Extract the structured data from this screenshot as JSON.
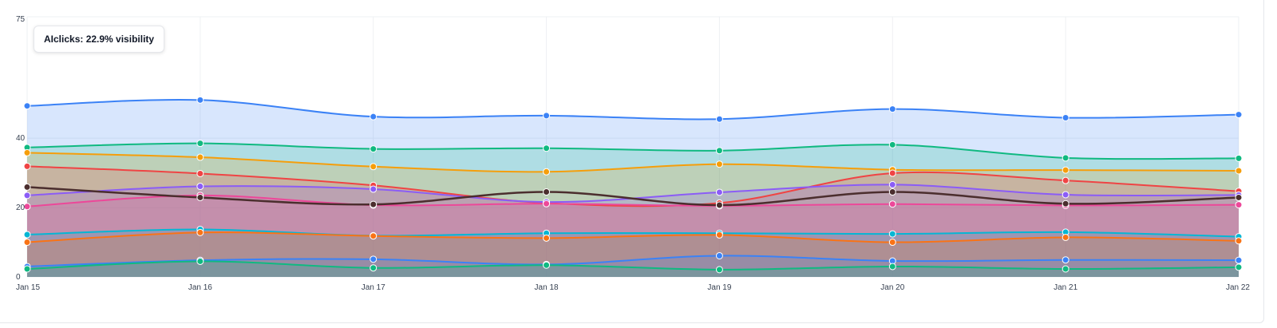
{
  "chart_data": {
    "type": "area",
    "x": [
      "Jan 15",
      "Jan 16",
      "Jan 17",
      "Jan 18",
      "Jan 19",
      "Jan 20",
      "Jan 21",
      "Jan 22"
    ],
    "ylim": [
      0,
      75
    ],
    "yticks": [
      0,
      20,
      40,
      75
    ],
    "grid": true,
    "legend": "none",
    "tooltip": "AIclicks: 22.9% visibility",
    "series": [
      {
        "color": "#3b82f6",
        "fill": true,
        "values": [
          49.3,
          51.0,
          46.2,
          46.5,
          45.5,
          48.4,
          45.9,
          46.8
        ]
      },
      {
        "color": "#10b981",
        "fill": true,
        "values": [
          37.3,
          38.5,
          36.9,
          37.1,
          36.4,
          38.1,
          34.3,
          34.2
        ]
      },
      {
        "color": "#f59e0b",
        "fill": true,
        "values": [
          35.8,
          34.5,
          31.8,
          30.3,
          32.5,
          30.9,
          30.8,
          30.6
        ]
      },
      {
        "color": "#ef4444",
        "fill": true,
        "values": [
          31.9,
          29.8,
          26.4,
          21.3,
          21.3,
          29.9,
          27.8,
          24.7
        ]
      },
      {
        "color": "#8b5cf6",
        "fill": true,
        "values": [
          23.5,
          26.1,
          25.3,
          21.6,
          24.4,
          26.6,
          23.7,
          23.6
        ]
      },
      {
        "color": "#ec4899",
        "fill": true,
        "values": [
          20.3,
          23.5,
          20.7,
          21.1,
          20.5,
          21.0,
          20.6,
          20.8
        ]
      },
      {
        "color": "#06b6d4",
        "fill": true,
        "values": [
          12.2,
          13.7,
          11.9,
          12.6,
          12.6,
          12.4,
          12.9,
          11.6
        ]
      },
      {
        "color": "#f97316",
        "fill": true,
        "values": [
          10.0,
          12.8,
          11.8,
          11.2,
          12.1,
          10.0,
          11.4,
          10.4
        ]
      },
      {
        "color": "#3b82f6",
        "fill": true,
        "values": [
          3.0,
          4.8,
          5.1,
          3.6,
          6.1,
          4.6,
          4.9,
          4.8
        ]
      },
      {
        "color": "#10b981",
        "fill": true,
        "values": [
          2.3,
          4.5,
          2.6,
          3.4,
          2.1,
          3.0,
          2.3,
          2.8
        ]
      },
      {
        "color": "#4b2e2e",
        "fill": false,
        "values": [
          25.9,
          22.9,
          20.9,
          24.5,
          20.7,
          24.5,
          21.1,
          22.9
        ]
      }
    ]
  }
}
